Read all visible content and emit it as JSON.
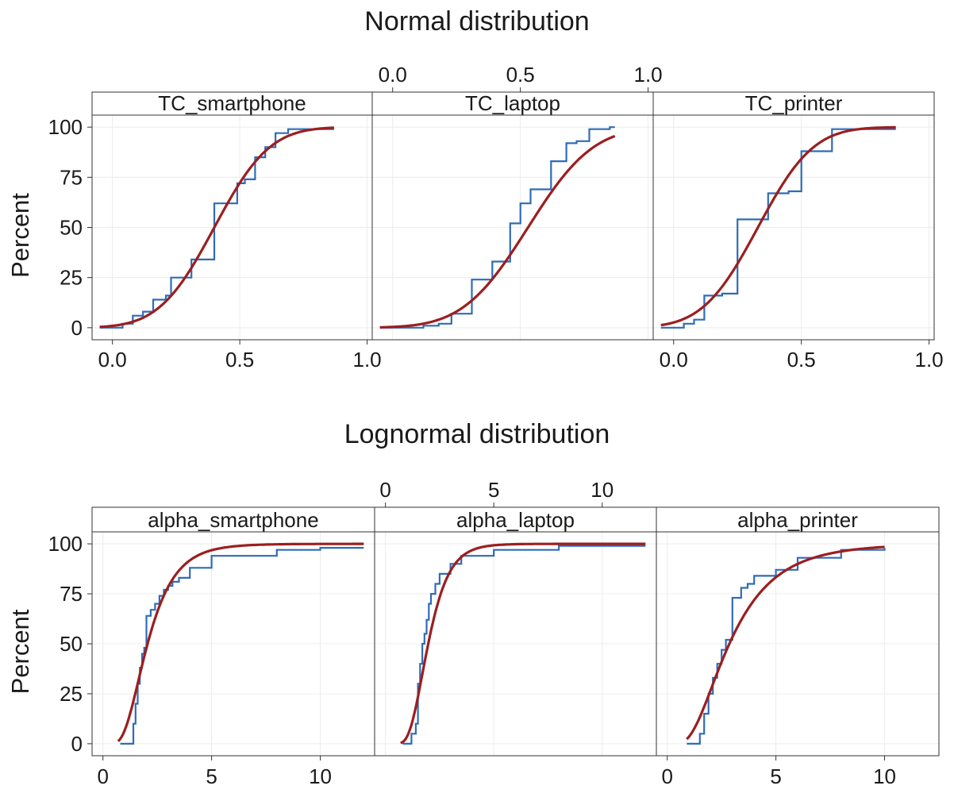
{
  "colors": {
    "ecdf": "#2f6bb8",
    "fit": "#9b1f1f",
    "frame": "#333333",
    "grid": "#ececec"
  },
  "chart_data": [
    {
      "type": "line",
      "title": "Normal distribution",
      "ylabel": "Percent",
      "distribution": "normal",
      "xlim": [
        -0.08,
        1.02
      ],
      "ylim": [
        -6,
        106
      ],
      "x_ticks": [
        "0.0",
        "0.5",
        "1.0"
      ],
      "x_tick_values": [
        0.0,
        0.5,
        1.0
      ],
      "y_ticks": [
        "0",
        "25",
        "50",
        "75",
        "100"
      ],
      "y_tick_values": [
        0,
        25,
        50,
        75,
        100
      ],
      "panels": [
        {
          "label": "TC_smartphone",
          "bottom_axis": true,
          "top_axis": false,
          "fit": {
            "mean": 0.4,
            "sd": 0.17,
            "xmin": -0.05,
            "xmax": 0.87
          },
          "ecdf": [
            {
              "x": -0.05,
              "y": 0
            },
            {
              "x": 0.04,
              "y": 2
            },
            {
              "x": 0.08,
              "y": 6
            },
            {
              "x": 0.12,
              "y": 8
            },
            {
              "x": 0.16,
              "y": 14
            },
            {
              "x": 0.21,
              "y": 16
            },
            {
              "x": 0.23,
              "y": 25
            },
            {
              "x": 0.31,
              "y": 34
            },
            {
              "x": 0.4,
              "y": 62
            },
            {
              "x": 0.49,
              "y": 72
            },
            {
              "x": 0.52,
              "y": 74
            },
            {
              "x": 0.56,
              "y": 85
            },
            {
              "x": 0.6,
              "y": 90
            },
            {
              "x": 0.64,
              "y": 97
            },
            {
              "x": 0.69,
              "y": 99
            },
            {
              "x": 0.87,
              "y": 99
            }
          ]
        },
        {
          "label": "TC_laptop",
          "bottom_axis": false,
          "top_axis": true,
          "fit": {
            "mean": 0.53,
            "sd": 0.2,
            "xmin": -0.05,
            "xmax": 0.87
          },
          "ecdf": [
            {
              "x": -0.05,
              "y": 0
            },
            {
              "x": 0.12,
              "y": 1
            },
            {
              "x": 0.18,
              "y": 2
            },
            {
              "x": 0.23,
              "y": 7
            },
            {
              "x": 0.31,
              "y": 24
            },
            {
              "x": 0.39,
              "y": 33
            },
            {
              "x": 0.46,
              "y": 52
            },
            {
              "x": 0.5,
              "y": 62
            },
            {
              "x": 0.54,
              "y": 69
            },
            {
              "x": 0.62,
              "y": 83
            },
            {
              "x": 0.68,
              "y": 92
            },
            {
              "x": 0.72,
              "y": 93
            },
            {
              "x": 0.77,
              "y": 99
            },
            {
              "x": 0.85,
              "y": 100
            },
            {
              "x": 0.87,
              "y": 100
            }
          ]
        },
        {
          "label": "TC_printer",
          "bottom_axis": true,
          "top_axis": false,
          "fit": {
            "mean": 0.33,
            "sd": 0.17,
            "xmin": -0.05,
            "xmax": 0.87
          },
          "ecdf": [
            {
              "x": -0.05,
              "y": 0
            },
            {
              "x": 0.04,
              "y": 2
            },
            {
              "x": 0.08,
              "y": 4
            },
            {
              "x": 0.12,
              "y": 16
            },
            {
              "x": 0.19,
              "y": 17
            },
            {
              "x": 0.25,
              "y": 54
            },
            {
              "x": 0.37,
              "y": 67
            },
            {
              "x": 0.45,
              "y": 68
            },
            {
              "x": 0.5,
              "y": 88
            },
            {
              "x": 0.62,
              "y": 99
            },
            {
              "x": 0.87,
              "y": 99
            }
          ]
        }
      ]
    },
    {
      "type": "line",
      "title": "Lognormal distribution",
      "ylabel": "Percent",
      "distribution": "lognormal",
      "xlim": [
        -0.5,
        12.5
      ],
      "ylim": [
        -6,
        106
      ],
      "x_ticks": [
        "0",
        "5",
        "10"
      ],
      "x_tick_values": [
        0,
        5,
        10
      ],
      "y_ticks": [
        "0",
        "25",
        "50",
        "75",
        "100"
      ],
      "y_tick_values": [
        0,
        25,
        50,
        75,
        100
      ],
      "panels": [
        {
          "label": "alpha_smartphone",
          "bottom_axis": true,
          "top_axis": false,
          "fit": {
            "meanlog": 0.72,
            "sdlog": 0.48,
            "xmin": 0.7,
            "xmax": 12
          },
          "ecdf": [
            {
              "x": 0.8,
              "y": 0
            },
            {
              "x": 1.4,
              "y": 10
            },
            {
              "x": 1.5,
              "y": 20
            },
            {
              "x": 1.6,
              "y": 30
            },
            {
              "x": 1.7,
              "y": 38
            },
            {
              "x": 1.8,
              "y": 45
            },
            {
              "x": 1.9,
              "y": 48
            },
            {
              "x": 2.0,
              "y": 64
            },
            {
              "x": 2.2,
              "y": 67
            },
            {
              "x": 2.4,
              "y": 70
            },
            {
              "x": 2.6,
              "y": 74
            },
            {
              "x": 2.8,
              "y": 77
            },
            {
              "x": 3.0,
              "y": 79
            },
            {
              "x": 3.2,
              "y": 81
            },
            {
              "x": 3.5,
              "y": 83
            },
            {
              "x": 4.0,
              "y": 88
            },
            {
              "x": 5.0,
              "y": 94
            },
            {
              "x": 8.0,
              "y": 97
            },
            {
              "x": 10.0,
              "y": 98
            },
            {
              "x": 12.0,
              "y": 98
            }
          ]
        },
        {
          "label": "alpha_laptop",
          "bottom_axis": false,
          "top_axis": true,
          "fit": {
            "meanlog": 0.68,
            "sdlog": 0.38,
            "xmin": 0.7,
            "xmax": 12
          },
          "ecdf": [
            {
              "x": 0.8,
              "y": 0
            },
            {
              "x": 1.2,
              "y": 5
            },
            {
              "x": 1.4,
              "y": 10
            },
            {
              "x": 1.5,
              "y": 30
            },
            {
              "x": 1.6,
              "y": 40
            },
            {
              "x": 1.7,
              "y": 50
            },
            {
              "x": 1.8,
              "y": 55
            },
            {
              "x": 1.9,
              "y": 62
            },
            {
              "x": 2.0,
              "y": 70
            },
            {
              "x": 2.1,
              "y": 75
            },
            {
              "x": 2.3,
              "y": 80
            },
            {
              "x": 2.5,
              "y": 85
            },
            {
              "x": 3.0,
              "y": 90
            },
            {
              "x": 3.5,
              "y": 94
            },
            {
              "x": 5.0,
              "y": 97
            },
            {
              "x": 8.0,
              "y": 99
            },
            {
              "x": 12.0,
              "y": 99
            }
          ]
        },
        {
          "label": "alpha_printer",
          "bottom_axis": true,
          "top_axis": false,
          "fit": {
            "meanlog": 1.05,
            "sdlog": 0.58,
            "xmin": 0.9,
            "xmax": 10
          },
          "ecdf": [
            {
              "x": 0.9,
              "y": 0
            },
            {
              "x": 1.5,
              "y": 5
            },
            {
              "x": 1.7,
              "y": 15
            },
            {
              "x": 1.9,
              "y": 25
            },
            {
              "x": 2.1,
              "y": 33
            },
            {
              "x": 2.3,
              "y": 40
            },
            {
              "x": 2.5,
              "y": 47
            },
            {
              "x": 2.7,
              "y": 52
            },
            {
              "x": 3.0,
              "y": 73
            },
            {
              "x": 3.4,
              "y": 78
            },
            {
              "x": 3.7,
              "y": 80
            },
            {
              "x": 4.0,
              "y": 84
            },
            {
              "x": 5.0,
              "y": 87
            },
            {
              "x": 6.0,
              "y": 93
            },
            {
              "x": 8.0,
              "y": 97
            },
            {
              "x": 10.0,
              "y": 98
            }
          ]
        }
      ]
    }
  ]
}
